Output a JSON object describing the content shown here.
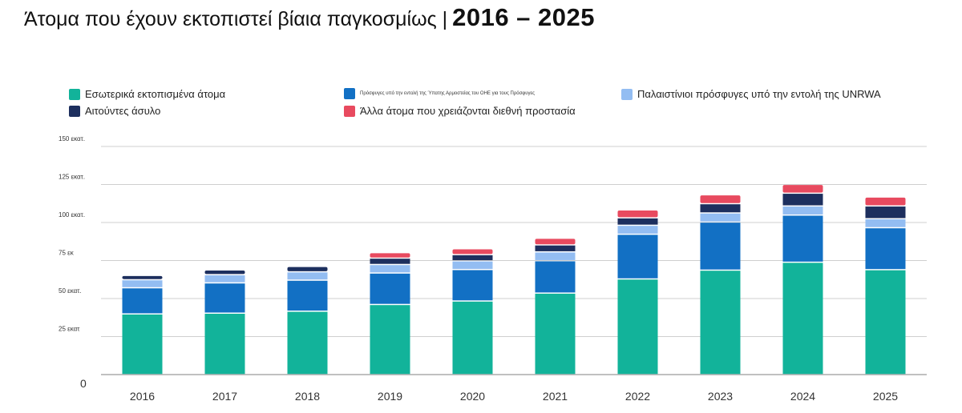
{
  "header": {
    "title": "Άτομα που έχουν εκτοπιστεί βίαια παγκοσμίως |",
    "years": "2016 – 2025"
  },
  "legend": [
    {
      "label": "Εσωτερικά εκτοπισμένα άτομα",
      "color": "#12b39a"
    },
    {
      "label": "Πρόσφυγες υπό την εντολή της Ύπατης Αρμοστείας του ΟΗΕ για τους Πρόσφυγες",
      "color": "#1270c4"
    },
    {
      "label": "Παλαιστίνιοι πρόσφυγες υπό την εντολή της UNRWA",
      "color": "#93bdf2"
    },
    {
      "label": "Αιτούντες άσυλο",
      "color": "#1d2f5e"
    },
    {
      "label": "Άλλα άτομα που χρειάζονται διεθνή προστασία",
      "color": "#e84a5f"
    }
  ],
  "chart_data": {
    "type": "bar",
    "stacked": true,
    "categories": [
      "2016",
      "2017",
      "2018",
      "2019",
      "2020",
      "2021",
      "2022",
      "2023",
      "2024",
      "2025"
    ],
    "series": [
      {
        "name": "Εσωτερικά εκτοπισμένα άτομα",
        "color": "#12b39a",
        "values": [
          39.5,
          40.0,
          41.3,
          45.7,
          48.0,
          53.2,
          62.5,
          68.3,
          73.5,
          68.6
        ]
      },
      {
        "name": "Πρόσφυγες υπό την εντολή της Ύπατης Αρμοστείας του ΟΗΕ για τους Πρόσφυγες",
        "color": "#1270c4",
        "values": [
          17.2,
          19.9,
          20.4,
          20.7,
          20.7,
          21.3,
          29.4,
          31.6,
          31.0,
          27.6
        ]
      },
      {
        "name": "Παλαιστίνιοι πρόσφυγες υπό την εντολή της UNRWA",
        "color": "#93bdf2",
        "values": [
          5.3,
          5.4,
          5.5,
          5.6,
          5.7,
          5.8,
          5.9,
          6.0,
          6.0,
          5.9
        ]
      },
      {
        "name": "Αιτούντες άσυλο",
        "color": "#1d2f5e",
        "values": [
          2.8,
          3.1,
          3.5,
          4.2,
          4.1,
          4.6,
          4.9,
          6.1,
          8.4,
          8.4
        ]
      },
      {
        "name": "Άλλα άτομα που χρειάζονται διεθνή προστασία",
        "color": "#e84a5f",
        "values": [
          0,
          0,
          0,
          3.6,
          3.9,
          4.4,
          5.2,
          5.8,
          5.8,
          5.9
        ]
      }
    ],
    "ylim": [
      0,
      150
    ],
    "yticks": [
      0,
      25,
      50,
      75,
      100,
      125,
      150
    ],
    "ytick_labels": [
      "0",
      "25 εκατ",
      "50 εκατ.",
      "75 εκ",
      "100 εκατ.",
      "125 εκατ.",
      "150 εκατ."
    ],
    "grid": true,
    "legend_position": "top"
  }
}
